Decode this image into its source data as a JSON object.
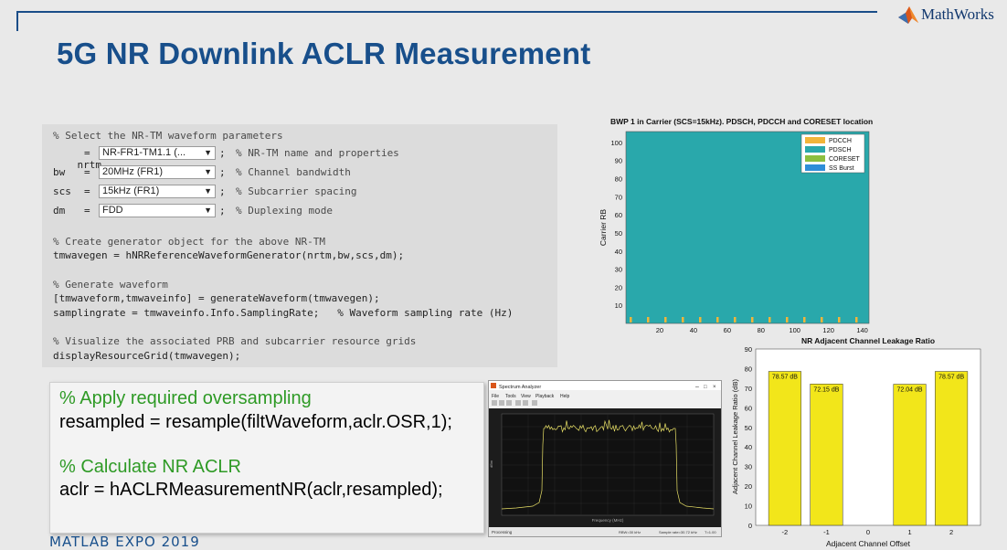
{
  "slide": {
    "title": "5G NR Downlink ACLR Measurement",
    "logo_text": "MathWorks",
    "footer": "MATLAB EXPO 2019",
    "colors": {
      "title": "#184f8b",
      "comment_green": "#2e9a25",
      "teal": "#29a8ab",
      "bar_yellow": "#f2e61a"
    }
  },
  "code1": {
    "line1": "% Select the NR-TM waveform parameters",
    "params": [
      {
        "name": "nrtm",
        "value": "NR-FR1-TM1.1   (...",
        "comment": "% NR-TM name and properties"
      },
      {
        "name": "bw",
        "value": "20MHz (FR1)",
        "comment": "% Channel bandwidth"
      },
      {
        "name": "scs",
        "value": "15kHz (FR1)",
        "comment": "% Subcarrier spacing"
      },
      {
        "name": "dm",
        "value": "FDD",
        "comment": "% Duplexing mode"
      }
    ],
    "eq": "=",
    "semi": ";",
    "line2": "% Create generator object for the above NR-TM",
    "line3": "tmwavegen = hNRReferenceWaveformGenerator(nrtm,bw,scs,dm);",
    "line4": "% Generate waveform",
    "line5": "[tmwaveform,tmwaveinfo] = generateWaveform(tmwavegen);",
    "line6": "samplingrate = tmwaveinfo.Info.SamplingRate;   % Waveform sampling rate (Hz)",
    "line7": "% Visualize the associated PRB and subcarrier resource grids",
    "line8": "displayResourceGrid(tmwavegen);"
  },
  "code2": {
    "c1": "% Apply required oversampling",
    "l1": "resampled = resample(filtWaveform,aclr.OSR,1);",
    "c2": "% Calculate NR ACLR",
    "l2": "aclr = hACLRMeasurementNR(aclr,resampled);"
  },
  "plot1": {
    "title": "BWP 1 in Carrier (SCS=15kHz). PDSCH, PDCCH and CORESET location",
    "ylabel": "Carrier RB",
    "xticks": [
      "20",
      "40",
      "60",
      "80",
      "100",
      "120",
      "140"
    ],
    "yticks": [
      "10",
      "20",
      "30",
      "40",
      "50",
      "60",
      "70",
      "80",
      "90",
      "100"
    ],
    "legend": [
      {
        "label": "PDCCH",
        "color": "#f1b53a"
      },
      {
        "label": "PDSCH",
        "color": "#29a8ab"
      },
      {
        "label": "CORESET",
        "color": "#8cbf3f"
      },
      {
        "label": "SS Burst",
        "color": "#2f8ed8"
      }
    ]
  },
  "spectrum": {
    "title": "Spectrum Analyzer",
    "menu": [
      "File",
      "Tools",
      "View",
      "Playback",
      "Help"
    ],
    "status_left": "Processing",
    "status_r1": "RBW=30 kHz",
    "status_r2": "Sample rate=30.72 kHz",
    "status_r3": "T=1.00",
    "xlabel": "Frequency (MHz)",
    "ylabel": "dBm"
  },
  "chart_data": {
    "type": "bar",
    "title": "NR Adjacent Channel Leakage Ratio",
    "xlabel": "Adjacent Channel Offset",
    "ylabel": "Adjacent Channel Leakage Ratio (dB)",
    "categories": [
      "-2",
      "-1",
      "0",
      "1",
      "2"
    ],
    "values": [
      78.57,
      72.15,
      0,
      72.04,
      78.57
    ],
    "data_labels": [
      "78.57 dB",
      "72.15 dB",
      "",
      "72.04 dB",
      "78.57 dB"
    ],
    "yticks": [
      "0",
      "10",
      "20",
      "30",
      "40",
      "50",
      "60",
      "70",
      "80",
      "90"
    ],
    "ylim": [
      0,
      90
    ]
  }
}
